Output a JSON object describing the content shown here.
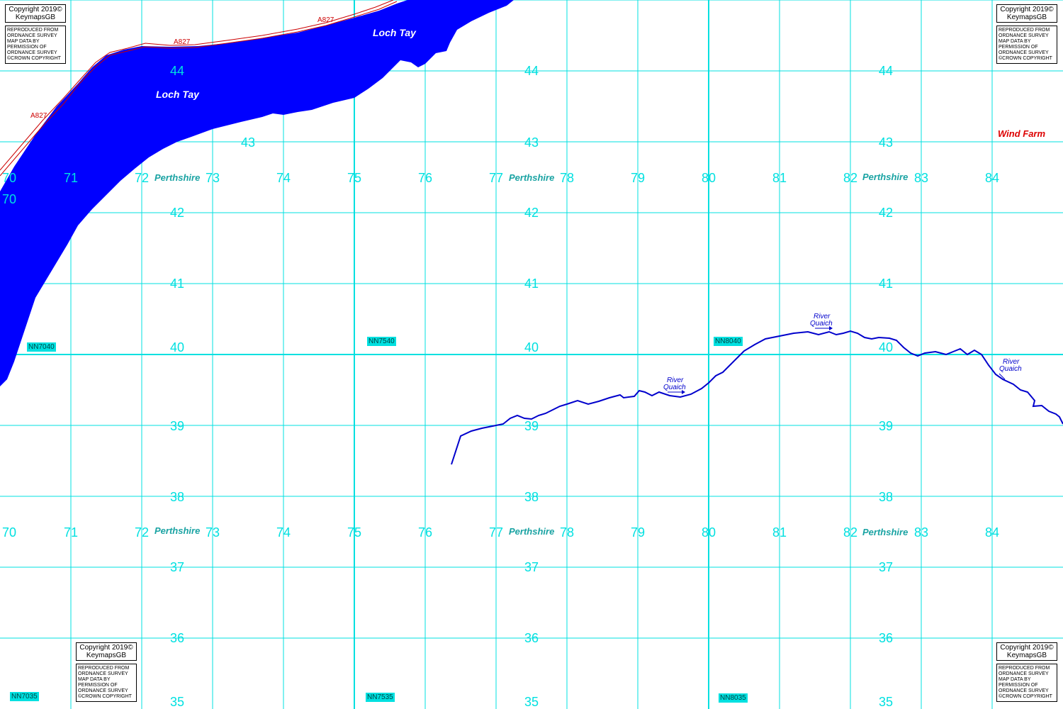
{
  "map": {
    "eastings_top": [
      "70",
      "71",
      "72",
      "73",
      "74",
      "75",
      "76",
      "77",
      "78",
      "79",
      "80",
      "81",
      "82",
      "83",
      "84"
    ],
    "eastings_bottom": [
      "70",
      "71",
      "72",
      "73",
      "74",
      "75",
      "76",
      "77",
      "78",
      "79",
      "80",
      "81",
      "82",
      "83",
      "84"
    ],
    "northings": [
      "44",
      "43",
      "42",
      "41",
      "40",
      "39",
      "38",
      "37",
      "36",
      "35"
    ],
    "county": "Perthshire",
    "lake_label": "Loch Tay",
    "road_label": "A827",
    "river_label": "River Quaich",
    "river_label_line1": "River",
    "river_label_line2": "Quaich",
    "wind_farm": "Wind Farm",
    "grid_refs": [
      "NN7040",
      "NN7540",
      "NN8040",
      "NN7035",
      "NN7535",
      "NN8035"
    ],
    "copyright": {
      "line1": "Copyright 2019©",
      "line2": "KeymapsGB",
      "notice": "REPRODUCED FROM ORDNANCE SURVEY MAP DATA BY PERMISSION OF ORDNANCE SURVEY ©CROWN COPYRIGHT"
    },
    "colors": {
      "grid": "#00e0e0",
      "water": "#0000ff",
      "road": "#cc0000",
      "river": "#0000cc"
    }
  }
}
